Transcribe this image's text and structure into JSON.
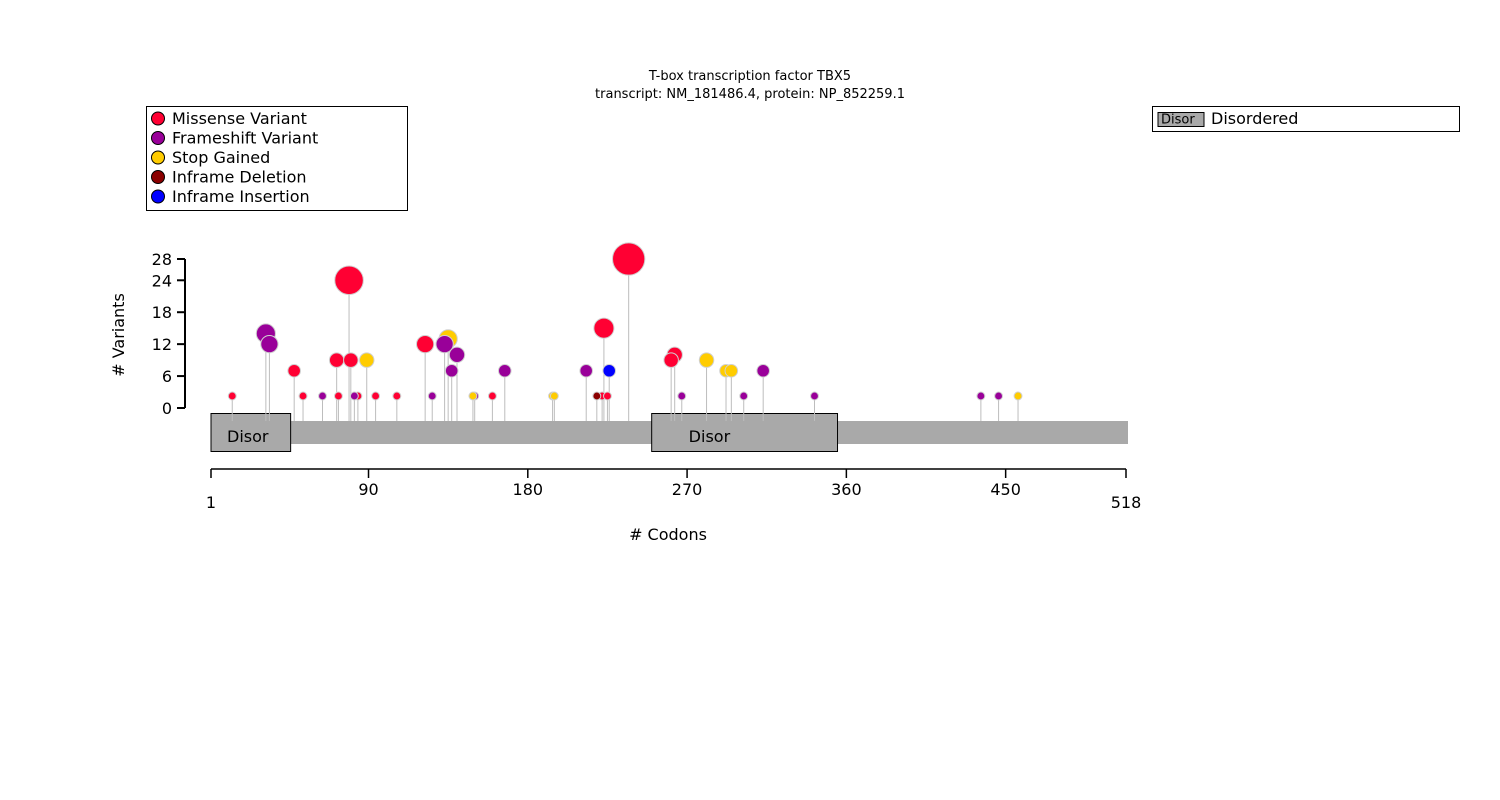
{
  "chart_data": {
    "type": "scatter",
    "title": "T-box transcription factor TBX5",
    "subtitle": "transcript: NM_181486.4, protein: NP_852259.1",
    "xlabel": "# Codons",
    "ylabel": "# Variants",
    "xlim": [
      1,
      518
    ],
    "ylim": [
      0,
      28
    ],
    "protein_length": 518,
    "x_ticks": [
      1,
      90,
      180,
      270,
      360,
      450,
      518
    ],
    "y_ticks": [
      0,
      6,
      12,
      18,
      24,
      28
    ],
    "legend_placement": "top-left",
    "series": [
      {
        "name": "Missense Variant",
        "color": "#ff0033",
        "points": [
          {
            "x": 13,
            "y": 2
          },
          {
            "x": 48,
            "y": 7
          },
          {
            "x": 53,
            "y": 2
          },
          {
            "x": 72,
            "y": 9
          },
          {
            "x": 73,
            "y": 2
          },
          {
            "x": 79,
            "y": 24
          },
          {
            "x": 80,
            "y": 9
          },
          {
            "x": 84,
            "y": 2
          },
          {
            "x": 94,
            "y": 2
          },
          {
            "x": 106,
            "y": 2
          },
          {
            "x": 122,
            "y": 12
          },
          {
            "x": 160,
            "y": 2
          },
          {
            "x": 222,
            "y": 2
          },
          {
            "x": 223,
            "y": 15
          },
          {
            "x": 225,
            "y": 2
          },
          {
            "x": 237,
            "y": 28
          },
          {
            "x": 261,
            "y": 9
          },
          {
            "x": 263,
            "y": 10
          }
        ]
      },
      {
        "name": "Frameshift Variant",
        "color": "#990099",
        "points": [
          {
            "x": 32,
            "y": 14
          },
          {
            "x": 34,
            "y": 12
          },
          {
            "x": 64,
            "y": 2
          },
          {
            "x": 82,
            "y": 2
          },
          {
            "x": 126,
            "y": 2
          },
          {
            "x": 133,
            "y": 12
          },
          {
            "x": 137,
            "y": 7
          },
          {
            "x": 140,
            "y": 10
          },
          {
            "x": 150,
            "y": 2
          },
          {
            "x": 167,
            "y": 7
          },
          {
            "x": 213,
            "y": 7
          },
          {
            "x": 267,
            "y": 2
          },
          {
            "x": 302,
            "y": 2
          },
          {
            "x": 313,
            "y": 7
          },
          {
            "x": 342,
            "y": 2
          },
          {
            "x": 436,
            "y": 2
          },
          {
            "x": 446,
            "y": 2
          }
        ]
      },
      {
        "name": "Stop Gained",
        "color": "#ffcc00",
        "points": [
          {
            "x": 89,
            "y": 9
          },
          {
            "x": 135,
            "y": 13
          },
          {
            "x": 149,
            "y": 2
          },
          {
            "x": 194,
            "y": 2
          },
          {
            "x": 195,
            "y": 2
          },
          {
            "x": 281,
            "y": 9
          },
          {
            "x": 292,
            "y": 7
          },
          {
            "x": 295,
            "y": 7
          },
          {
            "x": 457,
            "y": 2
          }
        ]
      },
      {
        "name": "Inframe Deletion",
        "color": "#8b0000",
        "points": [
          {
            "x": 219,
            "y": 2
          }
        ]
      },
      {
        "name": "Inframe Insertion",
        "color": "#0000ff",
        "points": [
          {
            "x": 226,
            "y": 7
          }
        ]
      }
    ],
    "domains": [
      {
        "label": "Disor",
        "start": 1,
        "end": 46,
        "color": "#a9a9a9"
      },
      {
        "label": "Disor",
        "start": 250,
        "end": 355,
        "color": "#a9a9a9"
      }
    ],
    "domain_legend": [
      {
        "swatch_label": "Disor",
        "name": "Disordered",
        "color": "#a9a9a9"
      }
    ]
  }
}
